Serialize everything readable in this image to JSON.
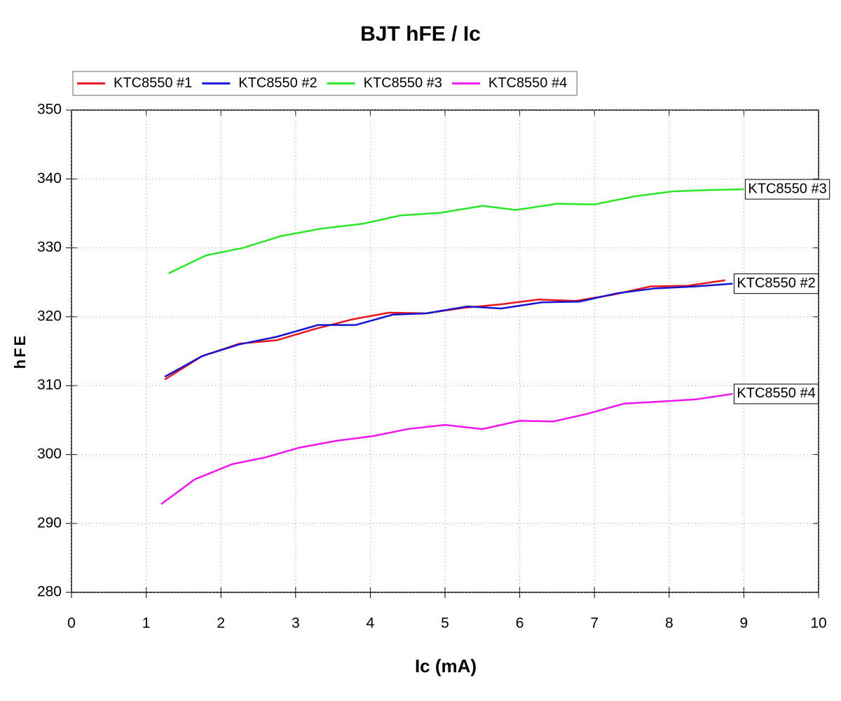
{
  "chart_data": {
    "type": "line",
    "title": "BJT hFE / Ic",
    "x_label": "Ic (mA)",
    "y_label": "hFE",
    "xlim": [
      0,
      10
    ],
    "ylim": [
      280,
      350
    ],
    "xticks": [
      0,
      1,
      2,
      3,
      4,
      5,
      6,
      7,
      8,
      9,
      10
    ],
    "yticks": [
      280,
      290,
      300,
      310,
      320,
      330,
      340,
      350
    ],
    "grid": true,
    "legend": "top-left",
    "series": [
      {
        "name": "KTC8550 #1",
        "color": "#e8141e",
        "x": [
          1.25,
          1.75,
          2.25,
          2.75,
          3.25,
          3.75,
          4.25,
          4.75,
          5.25,
          5.75,
          6.25,
          6.75,
          7.25,
          7.75,
          8.25,
          8.75
        ],
        "values": [
          310.9,
          314.3,
          316.1,
          316.6,
          318.2,
          319.6,
          320.6,
          320.5,
          321.3,
          321.8,
          322.5,
          322.3,
          323.2,
          324.4,
          324.5,
          325.3
        ]
      },
      {
        "name": "KTC8550 #2",
        "color": "#1414d2",
        "x": [
          1.25,
          1.75,
          2.25,
          2.75,
          3.3,
          3.8,
          4.3,
          4.75,
          5.3,
          5.75,
          6.3,
          6.8,
          7.3,
          7.8,
          8.35,
          8.85
        ],
        "values": [
          311.3,
          314.3,
          316.0,
          317.1,
          318.8,
          318.8,
          320.3,
          320.5,
          321.5,
          321.2,
          322.1,
          322.2,
          323.4,
          324.1,
          324.4,
          324.8
        ]
      },
      {
        "name": "KTC8550 #3",
        "color": "#28e628",
        "x": [
          1.3,
          1.8,
          2.3,
          2.8,
          3.35,
          3.9,
          4.4,
          4.95,
          5.5,
          5.95,
          6.5,
          7.0,
          7.55,
          8.05,
          8.55,
          9.0
        ],
        "values": [
          326.3,
          328.9,
          330.0,
          331.7,
          332.8,
          333.5,
          334.7,
          335.1,
          336.1,
          335.5,
          336.4,
          336.3,
          337.5,
          338.2,
          338.4,
          338.5
        ]
      },
      {
        "name": "KTC8550 #4",
        "color": "#f014f0",
        "x": [
          1.2,
          1.65,
          2.15,
          2.6,
          3.05,
          3.55,
          4.05,
          4.5,
          5.0,
          5.5,
          6.0,
          6.45,
          6.9,
          7.4,
          7.9,
          8.35,
          8.85
        ],
        "values": [
          292.8,
          296.4,
          298.6,
          299.6,
          301.0,
          302.0,
          302.7,
          303.7,
          304.3,
          303.7,
          304.9,
          304.8,
          305.9,
          307.4,
          307.7,
          308.0,
          308.8
        ]
      }
    ],
    "annotations": [
      "KTC8550 #3",
      "KTC8550 #2",
      "KTC8550 #4"
    ]
  }
}
